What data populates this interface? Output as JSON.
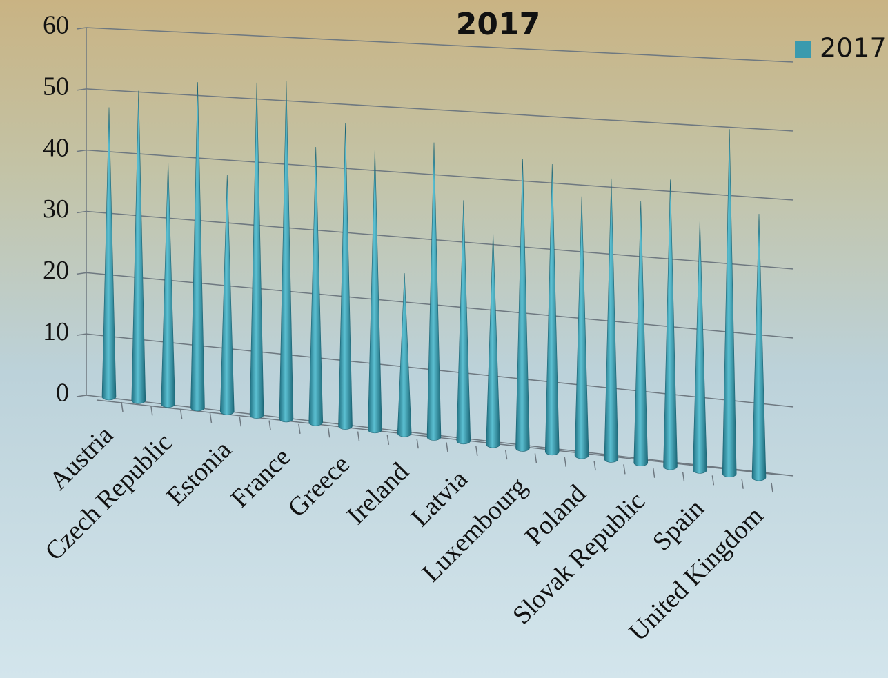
{
  "chart_data": {
    "type": "cone",
    "title": "2017",
    "categories": [
      "Austria",
      null,
      "Czech Republic",
      null,
      "Estonia",
      null,
      "France",
      null,
      "Greece",
      null,
      "Ireland",
      null,
      "Latvia",
      null,
      "Luxembourg",
      null,
      "Poland",
      null,
      "Slovak Republic",
      null,
      "Spain",
      null,
      "United Kingdom"
    ],
    "series": [
      {
        "name": "2017",
        "color": "#3a9aae",
        "values": [
          47,
          50,
          39,
          52,
          37.5,
          52.5,
          53,
          43,
          47,
          43.5,
          24.5,
          45,
          36.5,
          32,
          43.5,
          43,
          38.5,
          41.5,
          38.5,
          42,
          36.5,
          50,
          38
        ]
      }
    ],
    "ylim": [
      0,
      60
    ],
    "yticks": [
      0,
      10,
      20,
      30,
      40,
      50,
      60
    ],
    "grid": true,
    "legend": "top-right"
  }
}
